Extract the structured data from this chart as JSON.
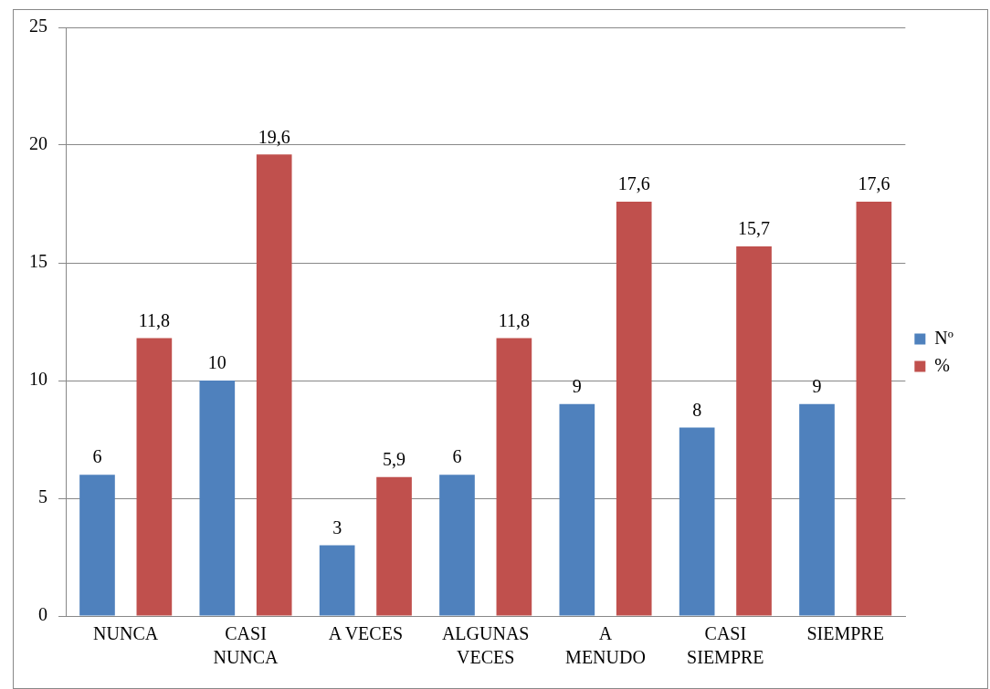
{
  "chart_data": {
    "type": "bar",
    "categories": [
      "NUNCA",
      "CASI NUNCA",
      "A VECES",
      "ALGUNAS VECES",
      "A MENUDO",
      "CASI SIEMPRE",
      "SIEMPRE"
    ],
    "series": [
      {
        "name": "Nº",
        "color": "#4f81bd",
        "values": [
          6,
          10,
          3,
          6,
          9,
          8,
          9
        ],
        "value_labels": [
          "6",
          "10",
          "3",
          "6",
          "9",
          "8",
          "9"
        ]
      },
      {
        "name": "%",
        "color": "#c0504d",
        "values": [
          11.8,
          19.6,
          5.9,
          11.8,
          17.6,
          15.7,
          17.6
        ],
        "value_labels": [
          "11,8",
          "19,6",
          "5,9",
          "11,8",
          "17,6",
          "15,7",
          "17,6"
        ]
      }
    ],
    "ylim": [
      0,
      25
    ],
    "yticks": [
      0,
      5,
      10,
      15,
      20,
      25
    ],
    "grid": "y",
    "legend": "right"
  }
}
